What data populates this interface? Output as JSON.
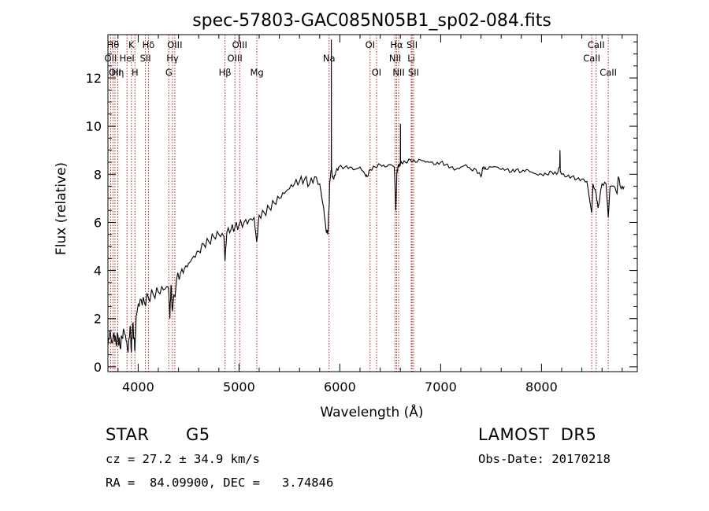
{
  "chart_data": {
    "type": "line",
    "title": "spec-57803-GAC085N05B1_sp02-084.fits",
    "xlabel": "Wavelength (Å)",
    "ylabel": "Flux (relative)",
    "xlim": [
      3700,
      8950
    ],
    "ylim": [
      -0.2,
      13.8
    ],
    "x_ticks": [
      4000,
      5000,
      6000,
      7000,
      8000
    ],
    "y_ticks": [
      0,
      2,
      4,
      6,
      8,
      10,
      12
    ],
    "grid": false,
    "line_color": "#000000",
    "marker_line_color": "#b22222",
    "series": [
      {
        "x": [
          3700,
          3720,
          3740,
          3760,
          3780,
          3800,
          3820,
          3840,
          3860,
          3880,
          3900,
          3920,
          3933,
          3945,
          3960,
          3968,
          3980,
          4000,
          4030,
          4060,
          4100,
          4150,
          4200,
          4250,
          4300,
          4315,
          4325,
          4340,
          4380,
          4420,
          4460,
          4500,
          4550,
          4600,
          4650,
          4700,
          4750,
          4800,
          4850,
          4861,
          4880,
          4920,
          4960,
          5000,
          5050,
          5100,
          5150,
          5175,
          5200,
          5250,
          5300,
          5350,
          5400,
          5450,
          5500,
          5550,
          5600,
          5650,
          5700,
          5750,
          5800,
          5840,
          5860,
          5880,
          5893,
          5900,
          5915,
          5916,
          5917,
          5925,
          5940,
          5960,
          5990,
          6050,
          6100,
          6150,
          6200,
          6250,
          6270,
          6300,
          6350,
          6400,
          6450,
          6500,
          6540,
          6555,
          6560,
          6565,
          6575,
          6590,
          6600,
          6601,
          6602,
          6610,
          6650,
          6700,
          6750,
          6800,
          6850,
          6900,
          6950,
          7000,
          7050,
          7100,
          7150,
          7200,
          7250,
          7300,
          7350,
          7400,
          7420,
          7450,
          7500,
          7550,
          7600,
          7650,
          7700,
          7750,
          7800,
          7850,
          7900,
          7950,
          8000,
          8050,
          8100,
          8150,
          8180,
          8183,
          8186,
          8200,
          8250,
          8300,
          8350,
          8400,
          8450,
          8498,
          8510,
          8542,
          8560,
          8600,
          8640,
          8662,
          8680,
          8720,
          8750,
          8760,
          8790,
          8820
        ],
        "y": [
          0.9,
          1.5,
          1.0,
          1.4,
          1.0,
          1.3,
          0.8,
          1.2,
          1.5,
          1.1,
          0.6,
          1.7,
          0.6,
          1.8,
          1.2,
          0.7,
          2.1,
          2.6,
          2.8,
          2.7,
          2.9,
          3.0,
          3.1,
          3.2,
          3.3,
          2.0,
          3.4,
          2.3,
          3.6,
          3.9,
          4.1,
          4.3,
          4.6,
          4.8,
          5.1,
          5.2,
          5.4,
          5.5,
          5.4,
          4.4,
          5.6,
          5.7,
          5.8,
          5.9,
          6.0,
          6.1,
          6.2,
          5.2,
          6.3,
          6.4,
          6.6,
          6.8,
          7.0,
          7.2,
          7.4,
          7.6,
          7.7,
          7.8,
          7.6,
          7.9,
          7.6,
          6.6,
          5.8,
          5.5,
          6.6,
          7.7,
          8.2,
          13.6,
          8.3,
          7.9,
          7.8,
          8.1,
          8.3,
          8.3,
          8.3,
          8.2,
          8.3,
          8.0,
          7.9,
          8.2,
          8.3,
          8.4,
          8.3,
          8.4,
          8.3,
          6.5,
          7.3,
          8.0,
          8.3,
          8.4,
          8.4,
          10.1,
          8.5,
          8.5,
          8.5,
          8.6,
          8.5,
          8.6,
          8.5,
          8.5,
          8.4,
          8.5,
          8.4,
          8.3,
          8.2,
          8.3,
          8.4,
          8.2,
          8.2,
          7.9,
          8.3,
          8.2,
          8.3,
          8.3,
          8.2,
          8.2,
          8.1,
          8.2,
          8.1,
          8.2,
          8.1,
          8.0,
          8.0,
          8.0,
          8.1,
          8.0,
          8.3,
          9.0,
          8.1,
          8.0,
          7.9,
          7.9,
          7.8,
          7.8,
          7.7,
          6.4,
          7.6,
          7.2,
          6.6,
          7.6,
          7.6,
          6.2,
          7.5,
          7.5,
          7.2,
          7.9,
          7.4,
          7.5
        ]
      }
    ],
    "line_markers": [
      {
        "wl": 3750,
        "label": "Hθ",
        "row": 1,
        "text_side": "center"
      },
      {
        "wl": 3727,
        "label": "OII",
        "row": 2,
        "text_side": "center"
      },
      {
        "wl": 3770,
        "label": "OII",
        "row": 3,
        "text_side": "center"
      },
      {
        "wl": 3797,
        "label": "Hη",
        "row": 3,
        "text_side": "center"
      },
      {
        "wl": 3889,
        "label": "HeI",
        "row": 2,
        "text_side": "center"
      },
      {
        "wl": 3933,
        "label": "K",
        "row": 1,
        "text_side": "center"
      },
      {
        "wl": 3968,
        "label": "H",
        "row": 3,
        "text_side": "center"
      },
      {
        "wl": 4072,
        "label": "SII",
        "row": 2,
        "text_side": "center"
      },
      {
        "wl": 4102,
        "label": "Hδ",
        "row": 1,
        "text_side": "center"
      },
      {
        "wl": 4304,
        "label": "G",
        "row": 3,
        "text_side": "center"
      },
      {
        "wl": 4340,
        "label": "Hγ",
        "row": 2,
        "text_side": "center"
      },
      {
        "wl": 4363,
        "label": "OIII",
        "row": 1,
        "text_side": "center"
      },
      {
        "wl": 4861,
        "label": "Hβ",
        "row": 3,
        "text_side": "center"
      },
      {
        "wl": 4959,
        "label": "OIII",
        "row": 2,
        "text_side": "center"
      },
      {
        "wl": 5007,
        "label": "OIII",
        "row": 1,
        "text_side": "center"
      },
      {
        "wl": 5177,
        "label": "Mg",
        "row": 3,
        "text_side": "center"
      },
      {
        "wl": 5893,
        "label": "Na",
        "row": 2,
        "text_side": "center"
      },
      {
        "wl": 6300,
        "label": "OI",
        "row": 1,
        "text_side": "center"
      },
      {
        "wl": 6364,
        "label": "OI",
        "row": 3,
        "text_side": "center"
      },
      {
        "wl": 6548,
        "label": "NII",
        "row": 2,
        "text_side": "center"
      },
      {
        "wl": 6563,
        "label": "Hα",
        "row": 1,
        "text_side": "center"
      },
      {
        "wl": 6583,
        "label": "NII",
        "row": 3,
        "text_side": "center"
      },
      {
        "wl": 6708,
        "label": "Li",
        "row": 2,
        "text_side": "center"
      },
      {
        "wl": 6716,
        "label": "SII",
        "row": 1,
        "text_side": "center"
      },
      {
        "wl": 6731,
        "label": "SII",
        "row": 3,
        "text_side": "center"
      },
      {
        "wl": 8498,
        "label": "CaII",
        "row": 2,
        "text_side": "center"
      },
      {
        "wl": 8542,
        "label": "CaII",
        "row": 1,
        "text_side": "center"
      },
      {
        "wl": 8662,
        "label": "CaII",
        "row": 3,
        "text_side": "center"
      }
    ]
  },
  "info": {
    "object_class": "STAR",
    "subclass": "G5",
    "survey": "LAMOST  DR5",
    "cz": "cz = 27.2 ± 34.9 km/s",
    "obs_date": "Obs-Date: 20170218",
    "coords": "RA =  84.09900, DEC =   3.74846"
  }
}
